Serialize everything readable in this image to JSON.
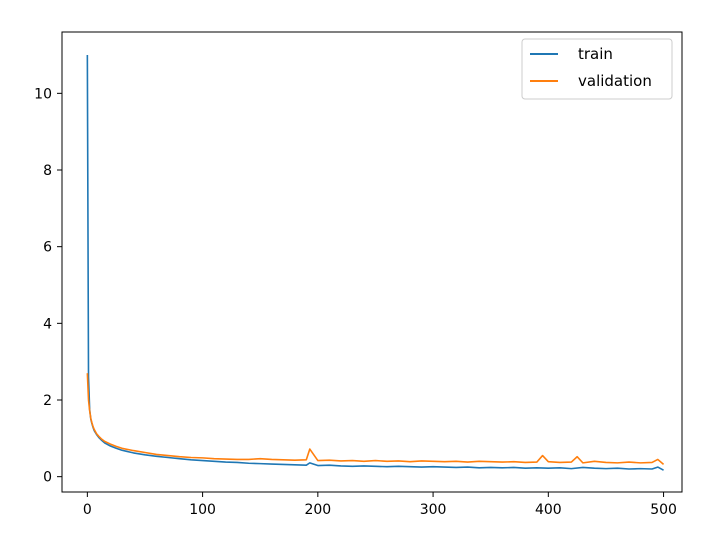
{
  "chart_data": {
    "type": "line",
    "title": "",
    "xlabel": "",
    "ylabel": "",
    "xlim": [
      -22,
      516
    ],
    "ylim": [
      -0.4,
      11.6
    ],
    "x_ticks": [
      0,
      100,
      200,
      300,
      400,
      500
    ],
    "y_ticks": [
      0,
      2,
      4,
      6,
      8,
      10
    ],
    "x_tick_labels": [
      "0",
      "100",
      "200",
      "300",
      "400",
      "500"
    ],
    "y_tick_labels": [
      "0",
      "2",
      "4",
      "6",
      "8",
      "10"
    ],
    "grid": false,
    "legend_position": "top-right",
    "series": [
      {
        "name": "train",
        "color": "#1f77b4",
        "x": [
          0,
          1,
          2,
          3,
          4,
          5,
          6,
          8,
          10,
          12,
          15,
          20,
          25,
          30,
          40,
          50,
          60,
          70,
          80,
          90,
          100,
          110,
          120,
          130,
          140,
          150,
          160,
          170,
          180,
          190,
          193,
          200,
          210,
          220,
          230,
          240,
          250,
          260,
          270,
          280,
          290,
          300,
          310,
          320,
          330,
          340,
          350,
          360,
          370,
          380,
          390,
          400,
          410,
          420,
          430,
          440,
          450,
          460,
          470,
          480,
          490,
          495,
          500
        ],
        "y": [
          11.0,
          2.6,
          1.75,
          1.5,
          1.38,
          1.28,
          1.2,
          1.1,
          1.02,
          0.96,
          0.88,
          0.8,
          0.74,
          0.69,
          0.62,
          0.57,
          0.53,
          0.5,
          0.47,
          0.44,
          0.42,
          0.4,
          0.38,
          0.37,
          0.35,
          0.34,
          0.33,
          0.32,
          0.31,
          0.3,
          0.36,
          0.29,
          0.3,
          0.28,
          0.27,
          0.28,
          0.27,
          0.26,
          0.27,
          0.26,
          0.25,
          0.26,
          0.25,
          0.24,
          0.25,
          0.23,
          0.24,
          0.23,
          0.24,
          0.22,
          0.23,
          0.22,
          0.23,
          0.21,
          0.24,
          0.22,
          0.21,
          0.22,
          0.2,
          0.21,
          0.2,
          0.25,
          0.17
        ]
      },
      {
        "name": "validation",
        "color": "#ff7f0e",
        "x": [
          0,
          1,
          2,
          3,
          4,
          5,
          6,
          8,
          10,
          12,
          15,
          20,
          25,
          30,
          40,
          50,
          60,
          70,
          80,
          90,
          100,
          110,
          120,
          130,
          140,
          150,
          160,
          170,
          180,
          190,
          193,
          200,
          210,
          220,
          230,
          240,
          250,
          260,
          270,
          280,
          290,
          300,
          310,
          320,
          330,
          340,
          350,
          360,
          370,
          380,
          390,
          395,
          400,
          410,
          420,
          425,
          430,
          440,
          450,
          460,
          470,
          480,
          490,
          495,
          500
        ],
        "y": [
          2.7,
          2.0,
          1.72,
          1.52,
          1.4,
          1.3,
          1.23,
          1.12,
          1.05,
          0.99,
          0.92,
          0.85,
          0.79,
          0.74,
          0.68,
          0.63,
          0.58,
          0.55,
          0.52,
          0.5,
          0.49,
          0.47,
          0.46,
          0.45,
          0.45,
          0.47,
          0.45,
          0.44,
          0.43,
          0.44,
          0.72,
          0.42,
          0.43,
          0.41,
          0.42,
          0.4,
          0.42,
          0.4,
          0.41,
          0.39,
          0.41,
          0.4,
          0.39,
          0.4,
          0.38,
          0.4,
          0.39,
          0.38,
          0.39,
          0.37,
          0.38,
          0.55,
          0.39,
          0.37,
          0.38,
          0.52,
          0.36,
          0.4,
          0.37,
          0.36,
          0.38,
          0.36,
          0.37,
          0.45,
          0.32
        ]
      }
    ]
  }
}
